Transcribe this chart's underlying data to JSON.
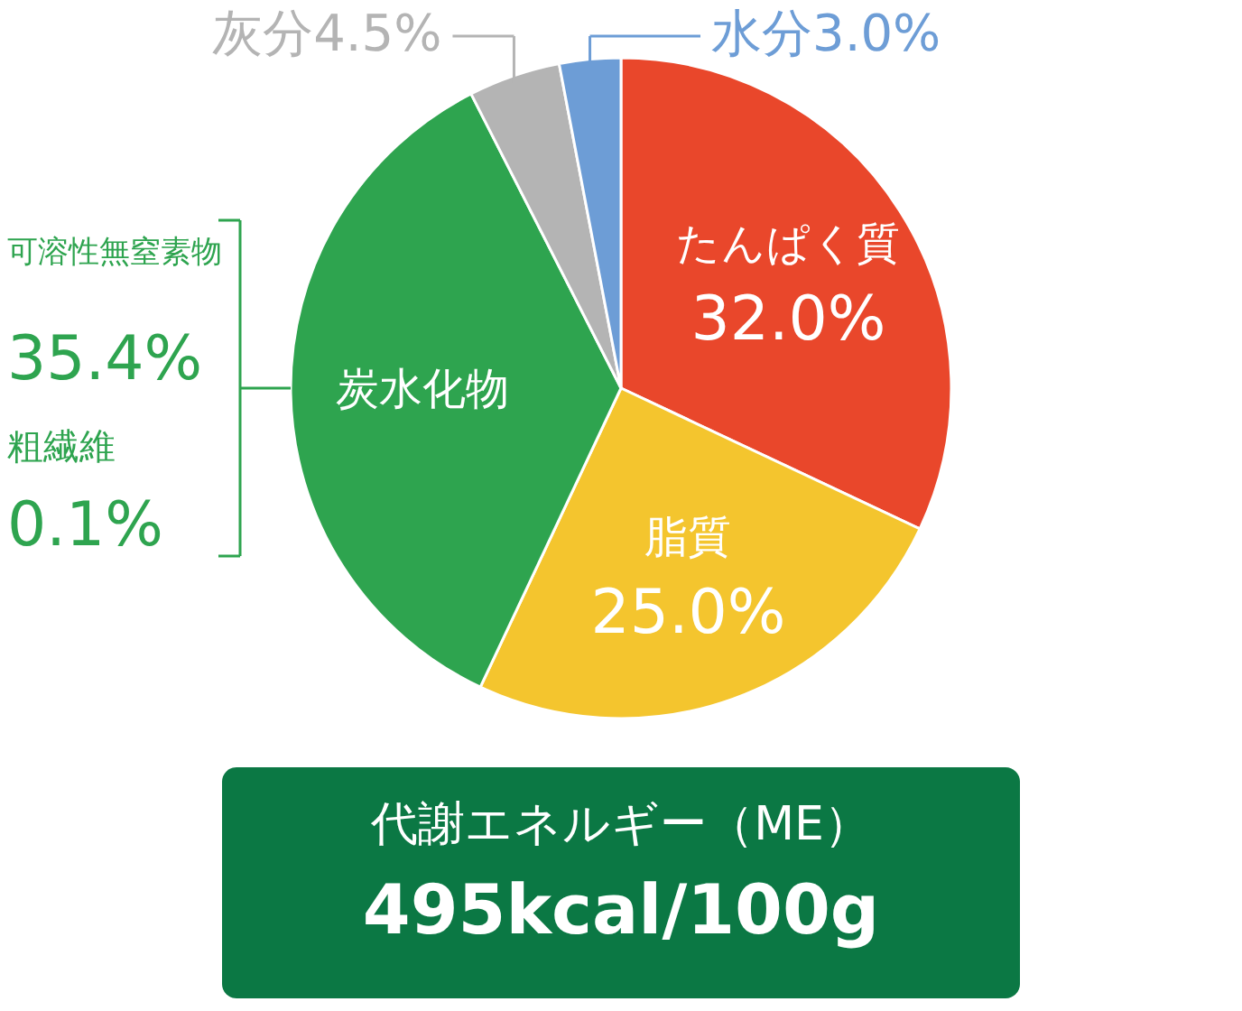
{
  "chart_data": {
    "type": "pie",
    "categories": [
      "たんぱく質",
      "脂質",
      "炭水化物",
      "灰分",
      "水分"
    ],
    "values": [
      32.0,
      25.0,
      35.5,
      4.5,
      3.0
    ],
    "colors": [
      "#e9472b",
      "#f4c52e",
      "#2ea44f",
      "#b4b4b4",
      "#6d9dd6"
    ],
    "value_labels": [
      "32.0%",
      "25.0%",
      null,
      "4.5%",
      "3.0%"
    ],
    "annotations": [
      "可溶性無窒素物",
      "35.4%",
      "粗繊維",
      "0.1%",
      "代謝エネルギー（ME）",
      "495kcal/100g"
    ]
  }
}
